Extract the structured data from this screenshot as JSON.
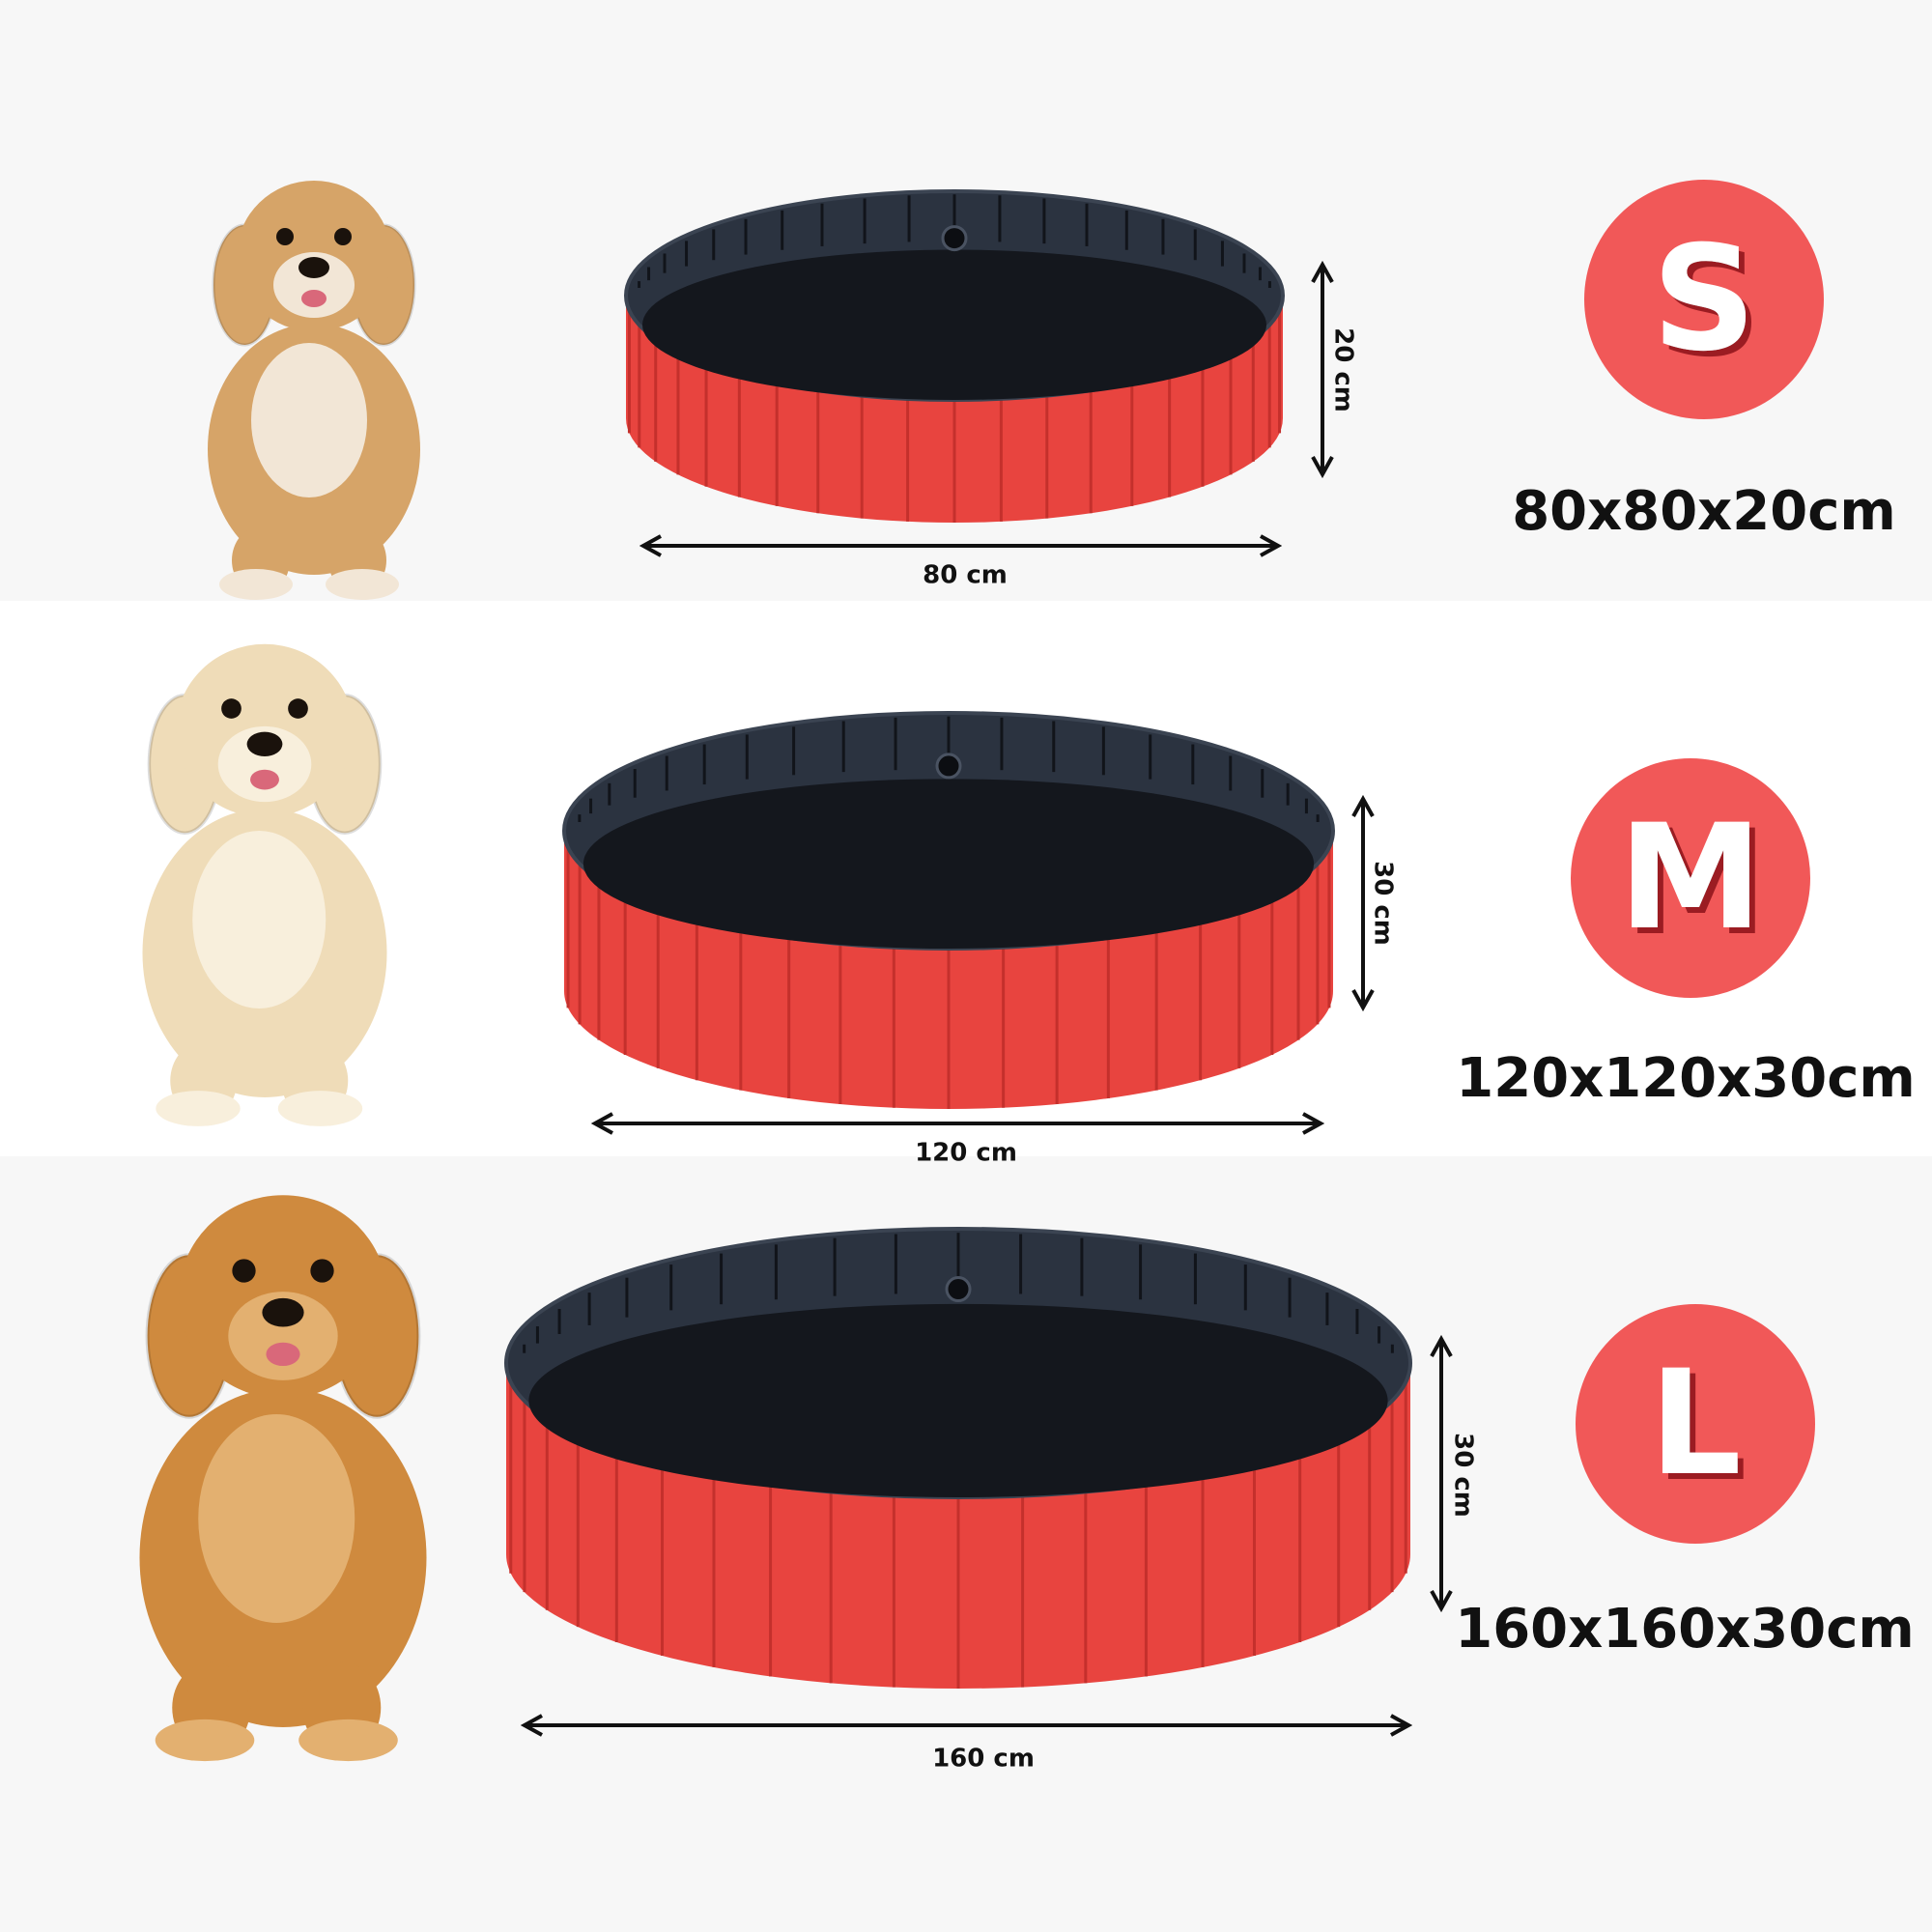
{
  "rows": [
    {
      "size": "S",
      "dimensions": "80x80x20cm",
      "width_label": "80 cm",
      "height_label": "20 cm"
    },
    {
      "size": "M",
      "dimensions": "120x120x30cm",
      "width_label": "120 cm",
      "height_label": "30 cm"
    },
    {
      "size": "L",
      "dimensions": "160x160x30cm",
      "width_label": "160 cm",
      "height_label": "30 cm"
    }
  ]
}
